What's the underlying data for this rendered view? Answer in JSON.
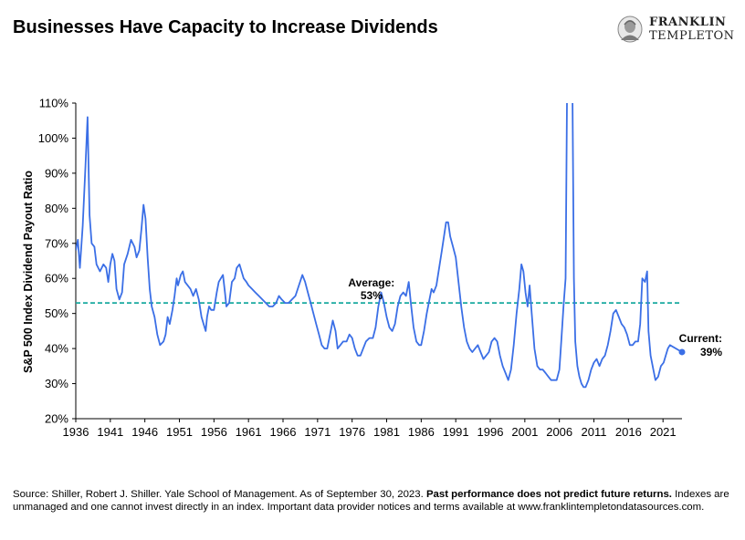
{
  "header": {
    "title": "Businesses Have Capacity to Increase Dividends",
    "logo_line1": "FRANKLIN",
    "logo_line2": "TEMPLETON"
  },
  "footer": {
    "source": "Source: Shiller, Robert J. Shiller. Yale School of Management. As of September 30, 2023.",
    "bold_text": "Past performance does not predict future returns.",
    "rest": "Indexes are unmanaged and one cannot invest directly in an index. Important data provider notices and terms available at www.franklintempletondatasources.com."
  },
  "colors": {
    "line": "#3b6fe6",
    "average": "#1aaaa0",
    "current_dot": "#3b6fe6"
  },
  "chart_data": {
    "type": "line",
    "title": "Businesses Have Capacity to Increase Dividends",
    "xlabel": "",
    "ylabel": "S&P 500 Index Dividend Payout Ratio",
    "xlim": [
      1936,
      2023.75
    ],
    "ylim": [
      20,
      110
    ],
    "x_ticks": [
      1936,
      1941,
      1946,
      1951,
      1956,
      1961,
      1966,
      1971,
      1976,
      1981,
      1986,
      1991,
      1996,
      2001,
      2006,
      2011,
      2016,
      2021
    ],
    "x_tick_labels": [
      "1936",
      "1941",
      "1946",
      "1951",
      "1956",
      "1961",
      "1966",
      "1971",
      "1976",
      "1981",
      "1986",
      "1991",
      "1996",
      "2001",
      "2006",
      "2011",
      "2016",
      "2021"
    ],
    "y_ticks": [
      20,
      30,
      40,
      50,
      60,
      70,
      80,
      90,
      100,
      110
    ],
    "y_tick_labels": [
      "20%",
      "30%",
      "40%",
      "50%",
      "60%",
      "70%",
      "80%",
      "90%",
      "100%",
      "110%"
    ],
    "grid": false,
    "average": {
      "value": 53,
      "label": "Average:",
      "value_label": "53%"
    },
    "current": {
      "x": 2023.75,
      "value": 39,
      "label": "Current:",
      "value_label": "39%"
    },
    "series": [
      {
        "name": "S&P 500 Index Dividend Payout Ratio",
        "points": [
          [
            1936.0,
            68
          ],
          [
            1936.3,
            71
          ],
          [
            1936.6,
            63
          ],
          [
            1937.0,
            75
          ],
          [
            1937.4,
            92
          ],
          [
            1937.7,
            106
          ],
          [
            1938.0,
            78
          ],
          [
            1938.3,
            70
          ],
          [
            1938.7,
            69
          ],
          [
            1939.0,
            64
          ],
          [
            1939.5,
            62
          ],
          [
            1940.0,
            64
          ],
          [
            1940.4,
            63
          ],
          [
            1940.7,
            59
          ],
          [
            1941.0,
            64
          ],
          [
            1941.3,
            67
          ],
          [
            1941.6,
            65
          ],
          [
            1941.9,
            57
          ],
          [
            1942.3,
            54
          ],
          [
            1942.7,
            56
          ],
          [
            1943.0,
            64
          ],
          [
            1943.5,
            67
          ],
          [
            1944.0,
            71
          ],
          [
            1944.5,
            69
          ],
          [
            1944.8,
            66
          ],
          [
            1945.2,
            68
          ],
          [
            1945.5,
            74
          ],
          [
            1945.8,
            81
          ],
          [
            1946.1,
            77
          ],
          [
            1946.4,
            66
          ],
          [
            1946.7,
            57
          ],
          [
            1947.0,
            52
          ],
          [
            1947.4,
            49
          ],
          [
            1947.8,
            44
          ],
          [
            1948.2,
            41
          ],
          [
            1948.7,
            42
          ],
          [
            1949.0,
            44
          ],
          [
            1949.3,
            49
          ],
          [
            1949.6,
            47
          ],
          [
            1950.0,
            51
          ],
          [
            1950.3,
            55
          ],
          [
            1950.6,
            60
          ],
          [
            1950.8,
            58
          ],
          [
            1951.2,
            61
          ],
          [
            1951.5,
            62
          ],
          [
            1951.8,
            59
          ],
          [
            1952.2,
            58
          ],
          [
            1952.6,
            57
          ],
          [
            1953.0,
            55
          ],
          [
            1953.4,
            57
          ],
          [
            1953.8,
            54
          ],
          [
            1954.2,
            49
          ],
          [
            1954.5,
            47
          ],
          [
            1954.8,
            45
          ],
          [
            1955.0,
            49
          ],
          [
            1955.3,
            52
          ],
          [
            1955.6,
            51
          ],
          [
            1956.0,
            51
          ],
          [
            1956.4,
            56
          ],
          [
            1956.7,
            59
          ],
          [
            1957.0,
            60
          ],
          [
            1957.3,
            61
          ],
          [
            1957.6,
            56
          ],
          [
            1957.8,
            52
          ],
          [
            1958.2,
            53
          ],
          [
            1958.6,
            59
          ],
          [
            1959.0,
            60
          ],
          [
            1959.3,
            63
          ],
          [
            1959.7,
            64
          ],
          [
            1960.0,
            62
          ],
          [
            1960.3,
            60
          ],
          [
            1960.7,
            59
          ],
          [
            1961.0,
            58
          ],
          [
            1961.5,
            57
          ],
          [
            1962.0,
            56
          ],
          [
            1962.5,
            55
          ],
          [
            1963.0,
            54
          ],
          [
            1963.5,
            53
          ],
          [
            1964.0,
            52
          ],
          [
            1964.5,
            52
          ],
          [
            1965.0,
            53
          ],
          [
            1965.4,
            55
          ],
          [
            1965.8,
            54
          ],
          [
            1966.3,
            53
          ],
          [
            1966.8,
            53
          ],
          [
            1967.3,
            54
          ],
          [
            1967.8,
            55
          ],
          [
            1968.3,
            58
          ],
          [
            1968.8,
            61
          ],
          [
            1969.2,
            59
          ],
          [
            1969.6,
            56
          ],
          [
            1970.0,
            53
          ],
          [
            1970.4,
            50
          ],
          [
            1970.8,
            47
          ],
          [
            1971.2,
            44
          ],
          [
            1971.6,
            41
          ],
          [
            1972.0,
            40
          ],
          [
            1972.4,
            40
          ],
          [
            1972.8,
            44
          ],
          [
            1973.2,
            48
          ],
          [
            1973.6,
            45
          ],
          [
            1973.9,
            40
          ],
          [
            1974.3,
            41
          ],
          [
            1974.7,
            42
          ],
          [
            1975.2,
            42
          ],
          [
            1975.6,
            44
          ],
          [
            1976.0,
            43
          ],
          [
            1976.4,
            40
          ],
          [
            1976.8,
            38
          ],
          [
            1977.2,
            38
          ],
          [
            1977.6,
            40
          ],
          [
            1978.0,
            42
          ],
          [
            1978.5,
            43
          ],
          [
            1979.0,
            43
          ],
          [
            1979.4,
            46
          ],
          [
            1979.8,
            52
          ],
          [
            1980.2,
            56
          ],
          [
            1980.6,
            53
          ],
          [
            1981.0,
            49
          ],
          [
            1981.4,
            46
          ],
          [
            1981.8,
            45
          ],
          [
            1982.2,
            47
          ],
          [
            1982.6,
            52
          ],
          [
            1983.0,
            55
          ],
          [
            1983.4,
            56
          ],
          [
            1983.8,
            55
          ],
          [
            1984.2,
            59
          ],
          [
            1984.5,
            53
          ],
          [
            1984.9,
            46
          ],
          [
            1985.3,
            42
          ],
          [
            1985.7,
            41
          ],
          [
            1986.0,
            41
          ],
          [
            1986.4,
            45
          ],
          [
            1986.8,
            50
          ],
          [
            1987.2,
            54
          ],
          [
            1987.5,
            57
          ],
          [
            1987.8,
            56
          ],
          [
            1988.2,
            58
          ],
          [
            1988.6,
            63
          ],
          [
            1989.0,
            68
          ],
          [
            1989.3,
            72
          ],
          [
            1989.6,
            76
          ],
          [
            1989.9,
            76
          ],
          [
            1990.2,
            72
          ],
          [
            1990.6,
            69
          ],
          [
            1991.0,
            66
          ],
          [
            1991.4,
            59
          ],
          [
            1991.8,
            52
          ],
          [
            1992.2,
            46
          ],
          [
            1992.6,
            42
          ],
          [
            1993.0,
            40
          ],
          [
            1993.4,
            39
          ],
          [
            1993.8,
            40
          ],
          [
            1994.2,
            41
          ],
          [
            1994.6,
            39
          ],
          [
            1995.0,
            37
          ],
          [
            1995.4,
            38
          ],
          [
            1995.8,
            39
          ],
          [
            1996.2,
            42
          ],
          [
            1996.6,
            43
          ],
          [
            1997.0,
            42
          ],
          [
            1997.4,
            38
          ],
          [
            1997.8,
            35
          ],
          [
            1998.2,
            33
          ],
          [
            1998.6,
            31
          ],
          [
            1999.0,
            34
          ],
          [
            1999.4,
            41
          ],
          [
            1999.8,
            50
          ],
          [
            2000.2,
            57
          ],
          [
            2000.5,
            64
          ],
          [
            2000.8,
            62
          ],
          [
            2001.1,
            56
          ],
          [
            2001.4,
            52
          ],
          [
            2001.7,
            58
          ],
          [
            2002.0,
            50
          ],
          [
            2002.4,
            40
          ],
          [
            2002.8,
            35
          ],
          [
            2003.2,
            34
          ],
          [
            2003.6,
            34
          ],
          [
            2004.0,
            33
          ],
          [
            2004.4,
            32
          ],
          [
            2004.8,
            31
          ],
          [
            2005.2,
            31
          ],
          [
            2005.6,
            31
          ],
          [
            2006.0,
            34
          ],
          [
            2006.3,
            43
          ],
          [
            2006.6,
            52
          ],
          [
            2006.9,
            60
          ],
          [
            2007.1,
            110
          ],
          [
            2007.4,
            160
          ],
          [
            2007.7,
            160
          ],
          [
            2007.9,
            110
          ],
          [
            2008.1,
            60
          ],
          [
            2008.3,
            42
          ],
          [
            2008.6,
            35
          ],
          [
            2008.9,
            32
          ],
          [
            2009.2,
            30
          ],
          [
            2009.5,
            29
          ],
          [
            2009.8,
            29
          ],
          [
            2010.2,
            31
          ],
          [
            2010.6,
            34
          ],
          [
            2011.0,
            36
          ],
          [
            2011.4,
            37
          ],
          [
            2011.8,
            35
          ],
          [
            2012.2,
            37
          ],
          [
            2012.6,
            38
          ],
          [
            2013.0,
            41
          ],
          [
            2013.4,
            45
          ],
          [
            2013.8,
            50
          ],
          [
            2014.2,
            51
          ],
          [
            2014.6,
            49
          ],
          [
            2015.0,
            47
          ],
          [
            2015.4,
            46
          ],
          [
            2015.8,
            44
          ],
          [
            2016.2,
            41
          ],
          [
            2016.6,
            41
          ],
          [
            2017.0,
            42
          ],
          [
            2017.4,
            42
          ],
          [
            2017.7,
            47
          ],
          [
            2018.0,
            60
          ],
          [
            2018.4,
            59
          ],
          [
            2018.7,
            62
          ],
          [
            2018.9,
            45
          ],
          [
            2019.2,
            38
          ],
          [
            2019.6,
            34
          ],
          [
            2019.9,
            31
          ],
          [
            2020.3,
            32
          ],
          [
            2020.7,
            35
          ],
          [
            2021.1,
            36
          ],
          [
            2021.4,
            38
          ],
          [
            2021.7,
            40
          ],
          [
            2022.0,
            41
          ]
        ]
      }
    ]
  }
}
